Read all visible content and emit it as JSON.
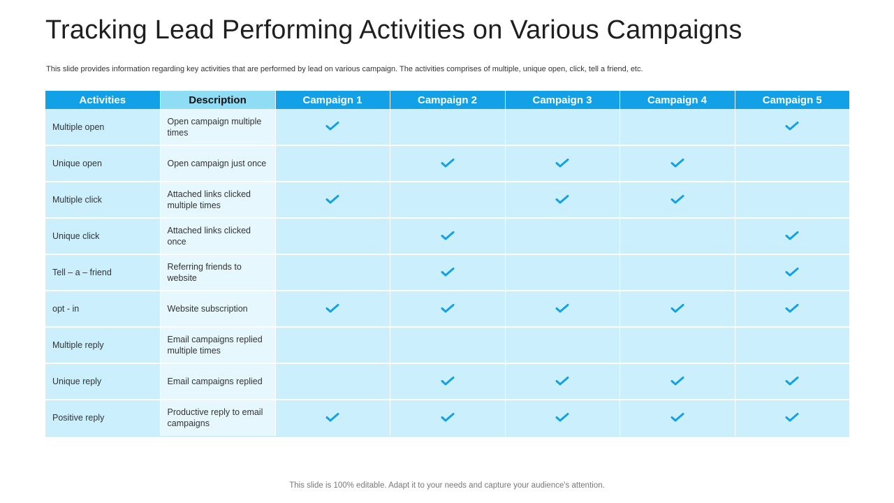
{
  "slide": {
    "title": "Tracking Lead Performing Activities on Various Campaigns",
    "subtitle": "This slide provides information regarding key activities that are performed by lead on various campaign. The activities comprises of multiple, unique open, click, tell a friend, etc.",
    "footer": "This slide is 100% editable. Adapt it to your needs and capture your audience's attention."
  },
  "table": {
    "headers": [
      "Activities",
      "Description",
      "Campaign 1",
      "Campaign 2",
      "Campaign 3",
      "Campaign 4",
      "Campaign 5"
    ],
    "rows": [
      {
        "activity": "Multiple open",
        "description": "Open campaign multiple times",
        "checks": [
          true,
          false,
          false,
          false,
          true
        ]
      },
      {
        "activity": "Unique open",
        "description": "Open campaign just once",
        "checks": [
          false,
          true,
          true,
          true,
          false
        ]
      },
      {
        "activity": "Multiple click",
        "description": "Attached links clicked multiple times",
        "checks": [
          true,
          false,
          true,
          true,
          false
        ]
      },
      {
        "activity": "Unique click",
        "description": "Attached links clicked once",
        "checks": [
          false,
          true,
          false,
          false,
          true
        ]
      },
      {
        "activity": "Tell – a – friend",
        "description": "Referring friends to website",
        "checks": [
          false,
          true,
          false,
          false,
          true
        ]
      },
      {
        "activity": "opt - in",
        "description": "Website subscription",
        "checks": [
          true,
          true,
          true,
          true,
          true
        ]
      },
      {
        "activity": "Multiple reply",
        "description": "Email campaigns replied multiple times",
        "checks": [
          false,
          false,
          false,
          false,
          false
        ]
      },
      {
        "activity": "Unique reply",
        "description": "Email campaigns replied",
        "checks": [
          false,
          true,
          true,
          true,
          true
        ]
      },
      {
        "activity": "Positive reply",
        "description": "Productive reply to email campaigns",
        "checks": [
          true,
          true,
          true,
          true,
          true
        ]
      }
    ]
  },
  "colors": {
    "header_bg": "#12a0e6",
    "description_header_bg": "#8fdcf5",
    "cell_bg": "#cbeffc",
    "description_cell_bg": "#e6f7fd",
    "check": "#12a0e6"
  }
}
